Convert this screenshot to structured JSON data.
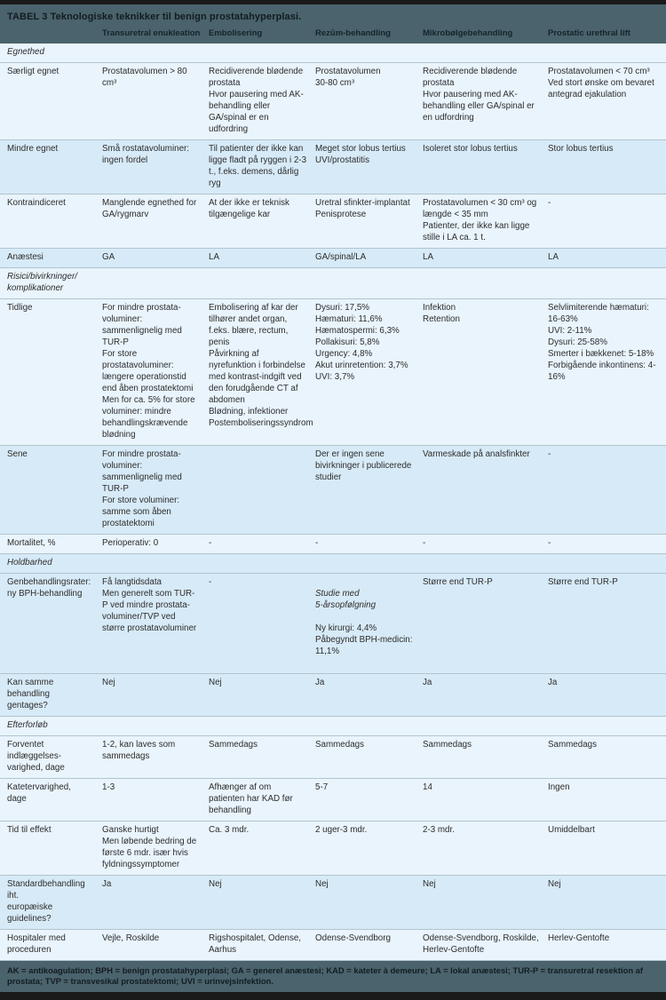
{
  "title": "TABEL 3 Teknologiske teknikker til benign prostatahyperplasi.",
  "theme": {
    "band_color": "#4a636d",
    "row_pale": "#e9f4fc",
    "row_shaded": "#d7eaf7",
    "bar_color": "#1a1a1a"
  },
  "columns": {
    "c1": "Transuretral enukleation",
    "c2": "Embolisering",
    "c3": "Rezūm-behandling",
    "c4": "Mikrobølgebehandling",
    "c5": "Prostatic urethral lift"
  },
  "rows": [
    {
      "type": "section",
      "label": "Egnethed"
    },
    {
      "type": "data",
      "label": "Særligt egnet",
      "cells": [
        "Prostatavolumen > 80 cm³",
        "Recidiverende blødende prostata\nHvor pausering med AK-behandling eller GA/spinal er en udfordring",
        "Prostatavolumen\n30-80 cm³",
        "Recidiverende blødende prostata\nHvor pausering med AK-behandling eller GA/spinal er en udfordring",
        "Prostatavolumen < 70 cm³\nVed stort ønske om bevaret antegrad ejakulation"
      ]
    },
    {
      "type": "data",
      "label": "Mindre egnet",
      "cells": [
        "Små rostatavoluminer:\ningen fordel",
        "Til patienter der ikke kan ligge fladt på ryggen i 2-3 t., f.eks. demens, dårlig ryg",
        "Meget stor lobus tertius\nUVI/prostatitis",
        "Isoleret stor lobus tertius",
        "Stor lobus tertius"
      ]
    },
    {
      "type": "data",
      "label": "Kontraindiceret",
      "cells": [
        "Manglende egnethed for GA/rygmarv",
        "At der ikke er teknisk tilgængelige kar",
        "Uretral sfinkter-implantat\nPenisprotese",
        "Prostatavolumen < 30 cm³ og længde < 35 mm\nPatienter, der ikke kan ligge stille i LA ca. 1 t.",
        "-"
      ]
    },
    {
      "type": "data",
      "label": "Anæstesi",
      "cells": [
        "GA",
        "LA",
        "GA/spinal/LA",
        "LA",
        "LA"
      ]
    },
    {
      "type": "section",
      "label": "Risici/bivirkninger/\nkomplikationer"
    },
    {
      "type": "data",
      "label": "Tidlige",
      "cells": [
        "For mindre prostata-voluminer: sammenlignelig med TUR-P\nFor store prostatavoluminer: længere operationstid end åben prostatektomi\nMen for ca. 5% for store voluminer: mindre behandlingskrævende blødning",
        "Embolisering af kar der tilhører andet organ, f.eks. blære, rectum, penis\nPåvirkning af nyrefunktion i forbindelse med kontrast-indgift ved den forudgående CT af abdomen\nBlødning, infektioner\nPostemboliseringssyndrom",
        "Dysuri: 17,5%\nHæmaturi: 11,6%\nHæmatospermi: 6,3%\nPollakisuri: 5,8%\nUrgency: 4,8%\nAkut urinretention: 3,7%\nUVI: 3,7%",
        "Infektion\nRetention",
        "Selvlimiterende hæmaturi: 16-63%\nUVI: 2-11%\nDysuri: 25-58%\nSmerter i bækkenet: 5-18%\nForbigående inkontinens: 4-16%"
      ]
    },
    {
      "type": "data",
      "label": "Sene",
      "cells": [
        "For mindre prostata-voluminer: sammenlignelig med TUR-P\nFor store voluminer: samme som åben prostatektomi",
        "",
        "Der er ingen sene bivirkninger i publicerede studier",
        "Varmeskade på analsfinkter",
        "-"
      ]
    },
    {
      "type": "data",
      "label": "Mortalitet, %",
      "cells": [
        "Perioperativ: 0",
        "-",
        "-",
        "-",
        "-"
      ]
    },
    {
      "type": "section",
      "label": "Holdbarhed"
    },
    {
      "type": "data",
      "label": "Genbehandlingsrater:\nny BPH-behandling",
      "studie_italic": "Studie med\n5-årsopfølgning",
      "studie_rest": "Ny kirurgi: 4,4%\nPåbegyndt BPH-medicin:\n11,1%",
      "cells": [
        "Få langtidsdata\nMen generelt som TUR-P ved mindre prostata-voluminer/TVP ved større prostatavoluminer",
        "-",
        "",
        "Større end TUR-P",
        "Større end TUR-P"
      ]
    },
    {
      "type": "data",
      "label": "Kan samme behandling\ngentages?",
      "cells": [
        "Nej",
        "Nej",
        "Ja",
        "Ja",
        "Ja"
      ]
    },
    {
      "type": "section",
      "label": "Efterforløb"
    },
    {
      "type": "data",
      "label": "Forventet indlæggelses-\nvarighed, dage",
      "cells": [
        "1-2, kan laves som sammedags",
        "Sammedags",
        "Sammedags",
        "Sammedags",
        "Sammedags"
      ]
    },
    {
      "type": "data",
      "label": "Katetervarighed, dage",
      "cells": [
        "1-3",
        "Afhænger af om patienten har KAD før behandling",
        "5-7",
        "14",
        "Ingen"
      ]
    },
    {
      "type": "data",
      "label": "Tid til effekt",
      "cells": [
        "Ganske hurtigt\nMen løbende bedring de første 6 mdr. især hvis fyldningssymptomer",
        "Ca. 3 mdr.",
        "2 uger-3 mdr.",
        "2-3 mdr.",
        "Umiddelbart"
      ]
    },
    {
      "type": "data",
      "label": "Standardbehandling iht.\neuropæiske guidelines?",
      "cells": [
        "Ja",
        "Nej",
        "Nej",
        "Nej",
        "Nej"
      ]
    },
    {
      "type": "data",
      "label": "Hospitaler med\nproceduren",
      "cells": [
        "Vejle, Roskilde",
        "Rigshospitalet, Odense, Aarhus",
        "Odense-Svendborg",
        "Odense-Svendborg, Roskilde, Herlev-Gentofte",
        "Herlev-Gentofte"
      ]
    }
  ],
  "footnote": "AK = antikoagulation; BPH = benign prostatahyperplasi; GA = generel anæstesi; KAD = kateter à demeure; LA = lokal anæstesi; TUR-P = transuretral resektion af prostata; TVP = transvesikal prostatektomi; UVI = urinvejsinfektion."
}
